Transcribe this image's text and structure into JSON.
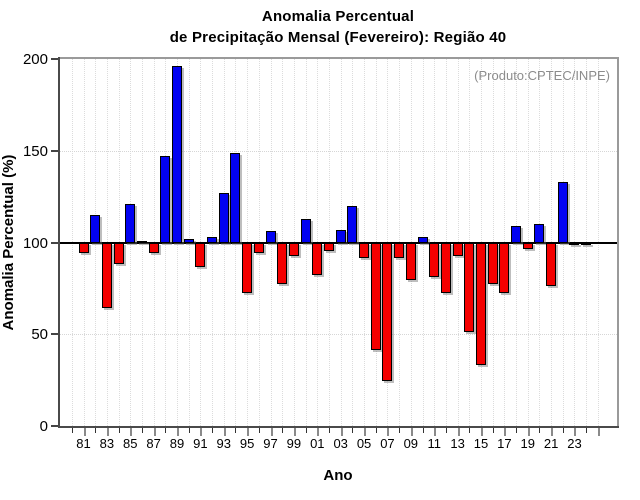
{
  "title": {
    "line1": "Anomalia Percentual",
    "line2": "de Precipitação Mensal (Fevereiro): Região 40"
  },
  "annotation": "(Produto:CPTEC/INPE)",
  "chart_data": {
    "type": "bar",
    "title": "Anomalia Percentual de Precipitação Mensal (Fevereiro): Região 40",
    "xlabel": "Ano",
    "ylabel": "Anomalia Percentual (%)",
    "ylim": [
      0,
      200
    ],
    "xlim_years": [
      1980,
      2025
    ],
    "yticks": [
      0,
      50,
      100,
      150,
      200
    ],
    "ytick_labels": [
      "0",
      "50",
      "100",
      "150",
      "200"
    ],
    "baseline": 100,
    "grid": "dotted",
    "legend": "none",
    "colors": {
      "above_baseline": "#0202f2",
      "below_baseline": "#f40000",
      "annotation_gray": "#8c8c8c"
    },
    "years": [
      1981,
      1982,
      1983,
      1984,
      1985,
      1986,
      1987,
      1988,
      1989,
      1990,
      1991,
      1992,
      1993,
      1994,
      1995,
      1996,
      1997,
      1998,
      1999,
      2000,
      2001,
      2002,
      2003,
      2004,
      2005,
      2006,
      2007,
      2008,
      2009,
      2010,
      2011,
      2012,
      2013,
      2014,
      2015,
      2016,
      2017,
      2018,
      2019,
      2020,
      2021,
      2022,
      2023,
      2024
    ],
    "values": [
      95,
      115,
      65,
      89,
      121,
      101,
      95,
      147,
      196,
      102,
      87,
      103,
      127,
      149,
      73,
      95,
      106,
      78,
      93,
      113,
      83,
      96,
      107,
      120,
      92,
      42,
      25,
      92,
      80,
      103,
      82,
      73,
      93,
      52,
      34,
      78,
      73,
      109,
      97,
      110,
      77,
      133,
      99,
      99
    ],
    "xtick_years": [
      1981,
      1983,
      1985,
      1987,
      1989,
      1991,
      1993,
      1995,
      1997,
      1999,
      2001,
      2003,
      2005,
      2007,
      2009,
      2011,
      2013,
      2015,
      2017,
      2019,
      2021,
      2023
    ],
    "xtick_labels": [
      "81",
      "83",
      "85",
      "87",
      "89",
      "91",
      "93",
      "95",
      "97",
      "99",
      "01",
      "03",
      "05",
      "07",
      "09",
      "11",
      "13",
      "15",
      "17",
      "19",
      "21",
      "23"
    ]
  }
}
